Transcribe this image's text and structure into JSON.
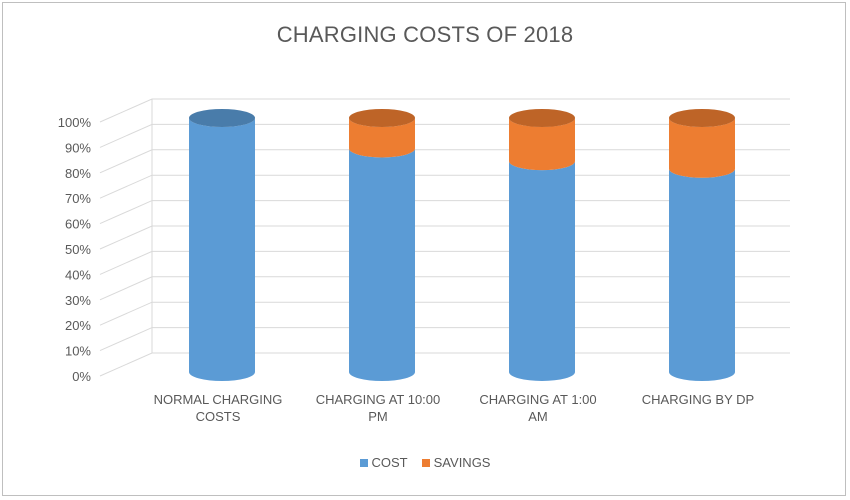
{
  "chart_data": {
    "type": "bar",
    "stacked": true,
    "percent_stacked": true,
    "style": "3d-cylinder",
    "title": "CHARGING COSTS OF 2018",
    "categories": [
      [
        "NORMAL CHARGING",
        "COSTS"
      ],
      [
        "CHARGING AT 10:00",
        "PM"
      ],
      [
        "CHARGING AT 1:00",
        "AM"
      ],
      [
        "CHARGING BY DP"
      ]
    ],
    "series": [
      {
        "name": "COST",
        "color": "#5b9bd5",
        "values": [
          100,
          88,
          83,
          80
        ]
      },
      {
        "name": "SAVINGS",
        "color": "#ed7d31",
        "values": [
          0,
          12,
          17,
          20
        ]
      }
    ],
    "yticks": [
      "0%",
      "10%",
      "20%",
      "30%",
      "40%",
      "50%",
      "60%",
      "70%",
      "80%",
      "90%",
      "100%"
    ],
    "ylim": [
      0,
      100
    ],
    "grid": true,
    "legend_position": "bottom"
  }
}
